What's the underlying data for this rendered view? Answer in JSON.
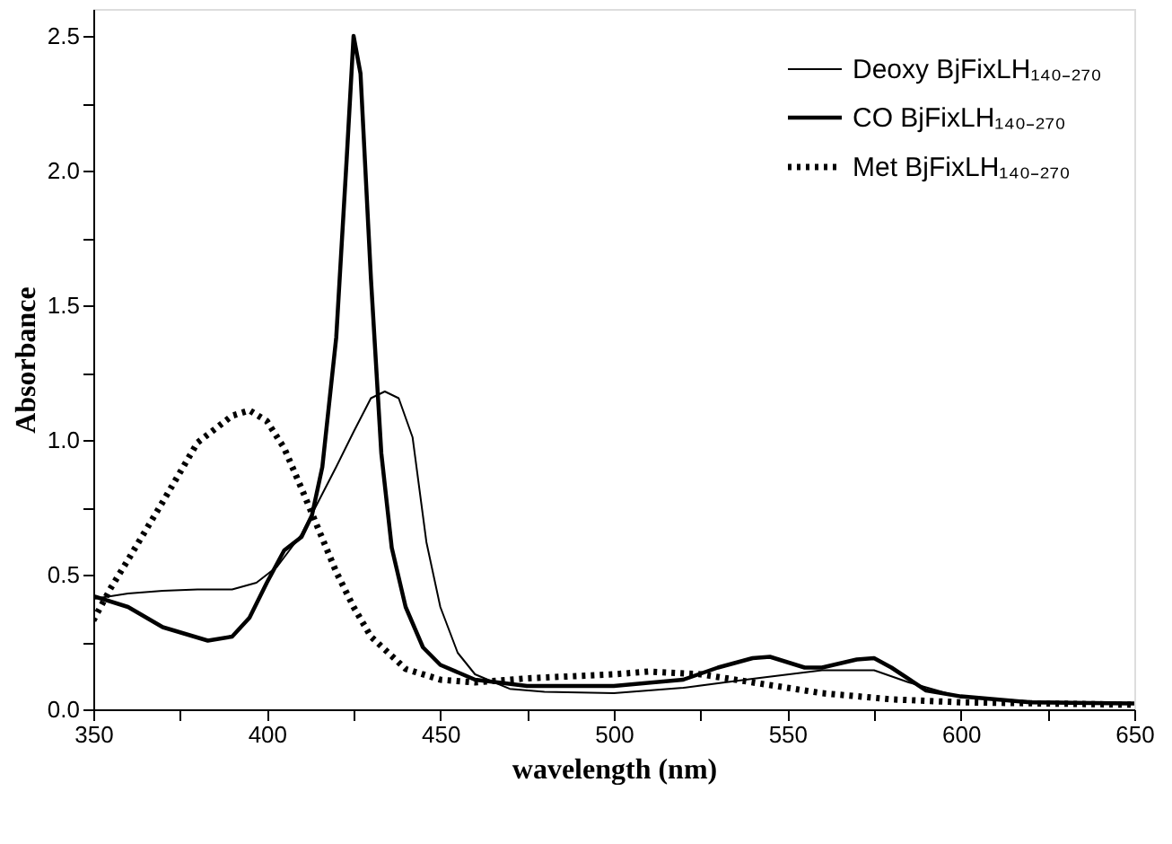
{
  "chart_data": {
    "type": "line",
    "xlabel": "wavelength (nm)",
    "ylabel": "Absorbance",
    "xlim": [
      350,
      650
    ],
    "ylim": [
      0,
      2.6
    ],
    "xticks": [
      350,
      {
        "value": 375,
        "label": null
      },
      400,
      {
        "value": 425,
        "label": null
      },
      450,
      {
        "value": 475,
        "label": null
      },
      500,
      {
        "value": 525,
        "label": null
      },
      550,
      {
        "value": 575,
        "label": null
      },
      600,
      {
        "value": 625,
        "label": null
      },
      650
    ],
    "yticks": [
      {
        "value": 0,
        "label": "0.0"
      },
      {
        "value": 0.25,
        "label": null
      },
      0.5,
      {
        "value": 0.75,
        "label": null
      },
      {
        "value": 1,
        "label": "1.0"
      },
      {
        "value": 1.25,
        "label": null
      },
      1.5,
      {
        "value": 1.75,
        "label": null
      },
      {
        "value": 2,
        "label": "2.0"
      },
      {
        "value": 2.25,
        "label": null
      },
      2.5
    ],
    "grid": false,
    "legend": "top right",
    "series": [
      {
        "name": "Deoxy BjFixLH₁₄₀₋₂₇₀",
        "color": "#000000",
        "line_style": "solid",
        "x": [
          350,
          360,
          370,
          380,
          390,
          397,
          403,
          410,
          420,
          425,
          430,
          434,
          438,
          442,
          446,
          450,
          455,
          460,
          470,
          480,
          500,
          520,
          540,
          560,
          575,
          585,
          600,
          620,
          650
        ],
        "values": [
          0.41,
          0.43,
          0.44,
          0.445,
          0.445,
          0.47,
          0.53,
          0.65,
          0.9,
          1.03,
          1.155,
          1.18,
          1.155,
          1.01,
          0.62,
          0.38,
          0.21,
          0.13,
          0.076,
          0.065,
          0.06,
          0.08,
          0.113,
          0.145,
          0.145,
          0.1,
          0.045,
          0.03,
          0.022
        ]
      },
      {
        "name": "CO BjFixLH₁₄₀₋₂₇₀",
        "color": "#000000",
        "line_style": "solid",
        "x": [
          350,
          360,
          370,
          383,
          390,
          395,
          400,
          405,
          410,
          413,
          416,
          420,
          423,
          425,
          427,
          430,
          433,
          436,
          440,
          445,
          450,
          460,
          475,
          500,
          520,
          530,
          540,
          545,
          555,
          560,
          570,
          575,
          580,
          590,
          600,
          620,
          650
        ],
        "values": [
          0.42,
          0.38,
          0.305,
          0.255,
          0.27,
          0.34,
          0.47,
          0.59,
          0.64,
          0.72,
          0.9,
          1.38,
          2.04,
          2.5,
          2.36,
          1.6,
          0.95,
          0.6,
          0.38,
          0.23,
          0.165,
          0.11,
          0.087,
          0.087,
          0.11,
          0.155,
          0.19,
          0.195,
          0.155,
          0.155,
          0.185,
          0.19,
          0.155,
          0.07,
          0.048,
          0.026,
          0.022
        ]
      },
      {
        "name": "Met BjFixLH₁₄₀₋₂₇₀",
        "color": "#000000",
        "line_style": "dotted",
        "x": [
          350,
          355,
          360,
          370,
          380,
          390,
          395,
          400,
          405,
          410,
          415,
          420,
          425,
          430,
          440,
          450,
          460,
          475,
          500,
          510,
          525,
          540,
          560,
          580,
          600,
          650
        ],
        "values": [
          0.33,
          0.45,
          0.555,
          0.77,
          0.99,
          1.09,
          1.11,
          1.07,
          0.97,
          0.82,
          0.665,
          0.51,
          0.38,
          0.27,
          0.15,
          0.11,
          0.1,
          0.115,
          0.13,
          0.14,
          0.13,
          0.1,
          0.06,
          0.037,
          0.026,
          0.017
        ]
      }
    ]
  }
}
